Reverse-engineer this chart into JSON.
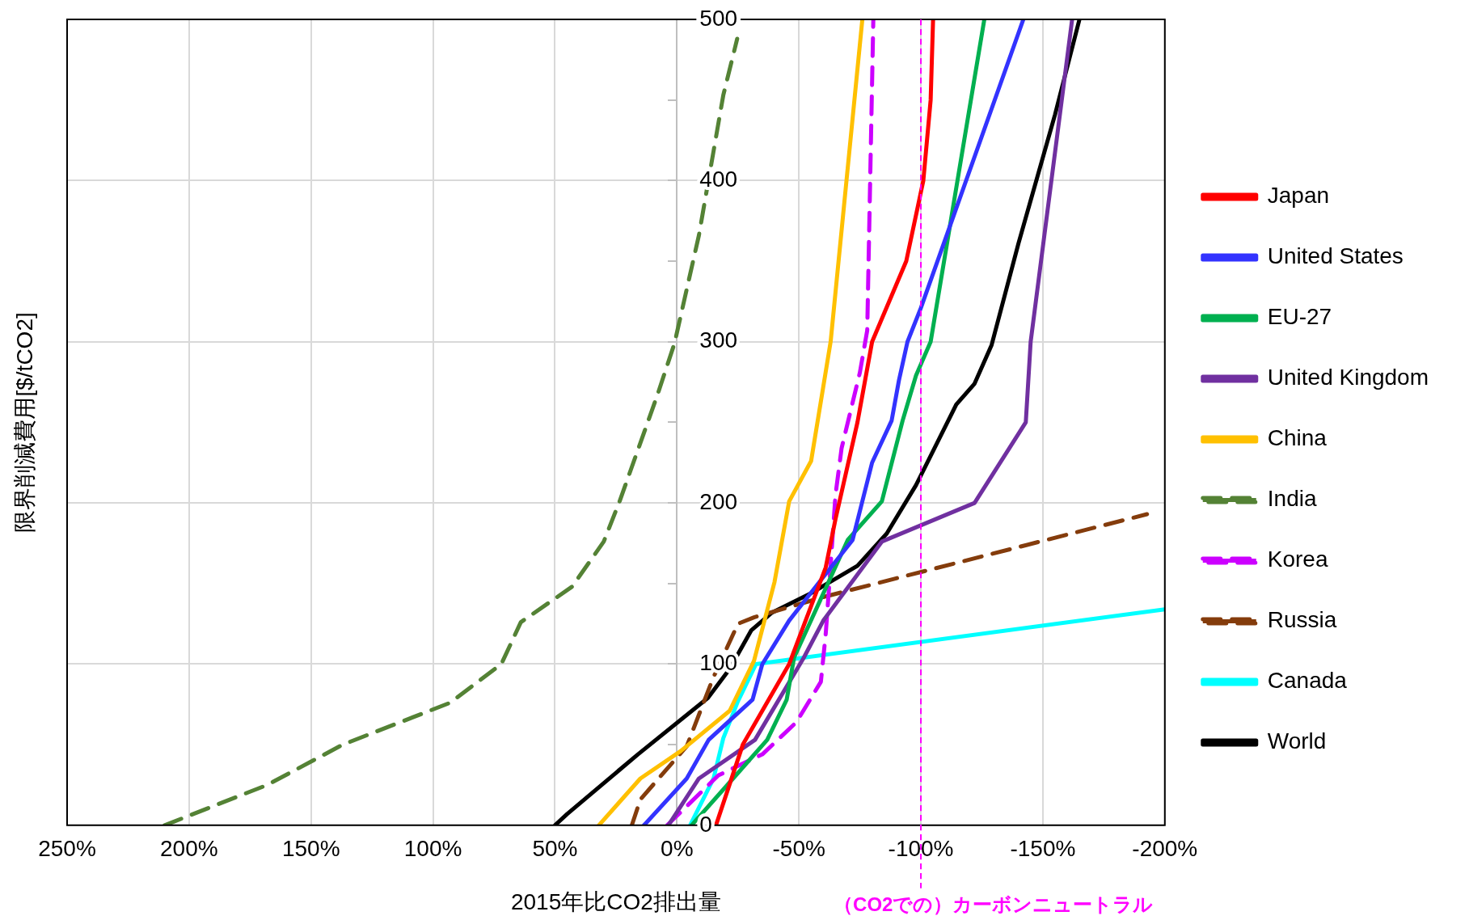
{
  "chart_data": {
    "type": "line",
    "xlabel": "2015年比CO2排出量",
    "ylabel": "限界削減費用[$/tCO2]",
    "xlim": [
      250,
      -200
    ],
    "xticks": [
      {
        "value": 250,
        "label": "250%"
      },
      {
        "value": 200,
        "label": "200%"
      },
      {
        "value": 150,
        "label": "150%"
      },
      {
        "value": 100,
        "label": "100%"
      },
      {
        "value": 50,
        "label": "50%"
      },
      {
        "value": 0,
        "label": "0%"
      },
      {
        "value": -50,
        "label": "-50%"
      },
      {
        "value": -100,
        "label": "-100%"
      },
      {
        "value": -150,
        "label": "-150%"
      },
      {
        "value": -200,
        "label": "-200%"
      }
    ],
    "ylim": [
      0,
      500
    ],
    "yticks": [
      0,
      {
        "value": 50,
        "label": null
      },
      100,
      {
        "value": 150,
        "label": null
      },
      200,
      {
        "value": 250,
        "label": null
      },
      300,
      {
        "value": 350,
        "label": null
      },
      400,
      {
        "value": 450,
        "label": null
      },
      500
    ],
    "grid": true,
    "legend": "right",
    "series": [
      {
        "name": "Japan",
        "color": "#ff0000",
        "line_style": "solid",
        "x": [
          -16,
          -27,
          -46,
          -61,
          -65,
          -74,
          -80,
          -94,
          -101,
          -104,
          -105
        ],
        "values": [
          0,
          50,
          100,
          160,
          190,
          250,
          300,
          350,
          400,
          450,
          500
        ]
      },
      {
        "name": "United States",
        "color": "#3333ff",
        "line_style": "solid",
        "x": [
          13.5,
          -4,
          -13,
          -31,
          -35,
          -46,
          -60,
          -72,
          -80,
          -88,
          -91,
          -94.5,
          -100,
          -142
        ],
        "values": [
          0,
          29,
          53,
          78,
          100,
          127,
          154,
          177,
          225,
          251,
          276,
          300,
          321,
          500
        ]
      },
      {
        "name": "EU-27",
        "color": "#00b050",
        "line_style": "solid",
        "x": [
          -6,
          -23,
          -37,
          -45,
          -48,
          -70,
          -84,
          -92.5,
          -98,
          -104,
          -126
        ],
        "values": [
          0,
          29,
          53,
          78,
          104,
          177,
          201,
          251,
          279,
          300,
          500
        ]
      },
      {
        "name": "United Kingdom",
        "color": "#7030a0",
        "line_style": "solid",
        "x": [
          3.5,
          -9,
          -32,
          -52,
          -60,
          -84,
          -122,
          -143,
          -145,
          -162
        ],
        "values": [
          0,
          29,
          53,
          104,
          127,
          176,
          200,
          250,
          300,
          500
        ]
      },
      {
        "name": "China",
        "color": "#ffc000",
        "line_style": "solid",
        "x": [
          32,
          15,
          -1.5,
          -21.6,
          -31.6,
          -40,
          -46,
          -55,
          -63,
          -76
        ],
        "values": [
          0,
          29,
          46,
          71,
          102,
          151,
          201,
          226,
          300,
          500
        ]
      },
      {
        "name": "India",
        "color": "#548235",
        "line_style": "dashed",
        "x": [
          210,
          168,
          137,
          93,
          72,
          64,
          43,
          30,
          23.5,
          8,
          1,
          -9,
          -19,
          -24.7
        ],
        "values": [
          0,
          25,
          50,
          76,
          100,
          126,
          148,
          176,
          201,
          267,
          299,
          366,
          453,
          488
        ]
      },
      {
        "name": "Korea",
        "color": "#cc00ff",
        "line_style": "dashed",
        "x": [
          4,
          -17,
          -35,
          -49,
          -59,
          -61,
          -62,
          -65,
          -67.5,
          -75,
          -78,
          -80.5
        ],
        "values": [
          0,
          31,
          44,
          64,
          89,
          119,
          140,
          205,
          234,
          281,
          307,
          500
        ]
      },
      {
        "name": "Russia",
        "color": "#843c0c",
        "line_style": "dashed",
        "x": [
          18.5,
          15,
          -4,
          -15,
          -25,
          -31.6,
          -61,
          -192.7
        ],
        "values": [
          0,
          16,
          49,
          92,
          125,
          129,
          142,
          193
        ]
      },
      {
        "name": "Canada",
        "color": "#00ffff",
        "line_style": "solid",
        "x": [
          -5.4,
          -15,
          -19,
          -25,
          -32.4,
          -200
        ],
        "values": [
          0,
          29,
          54,
          77,
          100,
          134
        ]
      },
      {
        "name": "World",
        "color": "#000000",
        "line_style": "solid",
        "x": [
          50,
          45,
          16,
          -12.7,
          -21.6,
          -30.5,
          -39,
          -55,
          -74,
          -86,
          -98,
          -114.5,
          -122,
          -129,
          -140,
          -155,
          -165
        ],
        "values": [
          0,
          7,
          44,
          79,
          97,
          121,
          132,
          144,
          161,
          181,
          211,
          261,
          274,
          298,
          361,
          441,
          500
        ]
      }
    ],
    "ref_lines": [
      {
        "axis": "x",
        "value": -100,
        "label": "（CO2での）カーボンニュートラル",
        "color": "#ff00ff",
        "line_style": "dashed"
      }
    ]
  }
}
